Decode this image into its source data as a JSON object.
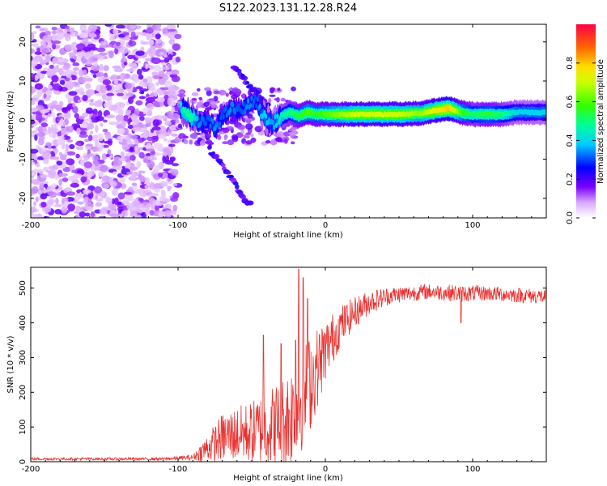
{
  "figure": {
    "title": "S122.2023.131.12.28.R24"
  },
  "chart_data": [
    {
      "type": "heatmap",
      "title": "",
      "xlabel": "Height of straight line (km)",
      "ylabel": "Frequency (Hz)",
      "xlim": [
        -200,
        150
      ],
      "ylim": [
        -25,
        24.5
      ],
      "xticks": [
        -200,
        -100,
        0,
        100
      ],
      "xtick_labels": [
        "-200",
        "-100",
        "0",
        "100"
      ],
      "yticks": [
        -20,
        -10,
        0,
        10,
        20
      ],
      "ytick_labels": [
        "-20",
        "-10",
        "0",
        "10",
        "20"
      ],
      "colorbar": {
        "label": "Normalized spectral amplitude",
        "range": [
          0,
          1
        ],
        "ticks": [
          0,
          0.2,
          0.4,
          0.6,
          0.8
        ],
        "tick_labels": [
          "0.0",
          "0.2",
          "0.4",
          "0.6",
          "0.8"
        ]
      },
      "features": {
        "noise_region_x": [
          -200,
          -100
        ],
        "main_ridge": [
          {
            "x": -98,
            "y": 3,
            "a": 0.45
          },
          {
            "x": -92,
            "y": 1.5,
            "a": 0.5
          },
          {
            "x": -86,
            "y": -1,
            "a": 0.35
          },
          {
            "x": -80,
            "y": 0,
            "a": 0.3
          },
          {
            "x": -75,
            "y": -2,
            "a": 0.35
          },
          {
            "x": -70,
            "y": 1,
            "a": 0.3
          },
          {
            "x": -64,
            "y": 3,
            "a": 0.35
          },
          {
            "x": -58,
            "y": 2.5,
            "a": 0.3
          },
          {
            "x": -52,
            "y": 4,
            "a": 0.35
          },
          {
            "x": -47,
            "y": 5,
            "a": 0.3
          },
          {
            "x": -42,
            "y": 1,
            "a": 0.4
          },
          {
            "x": -36,
            "y": -1,
            "a": 0.35
          },
          {
            "x": -30,
            "y": 1,
            "a": 0.45
          },
          {
            "x": -24,
            "y": 2,
            "a": 0.5
          },
          {
            "x": -18,
            "y": 1,
            "a": 0.55
          },
          {
            "x": -12,
            "y": 2,
            "a": 0.6
          },
          {
            "x": -6,
            "y": 1.5,
            "a": 0.55
          },
          {
            "x": 0,
            "y": 1.5,
            "a": 0.6
          },
          {
            "x": 10,
            "y": 1.5,
            "a": 0.65
          },
          {
            "x": 20,
            "y": 1.5,
            "a": 0.7
          },
          {
            "x": 35,
            "y": 1.5,
            "a": 0.7
          },
          {
            "x": 50,
            "y": 1.5,
            "a": 0.7
          },
          {
            "x": 65,
            "y": 1.7,
            "a": 0.65
          },
          {
            "x": 75,
            "y": 2.5,
            "a": 0.75
          },
          {
            "x": 84,
            "y": 3,
            "a": 0.8
          },
          {
            "x": 92,
            "y": 2,
            "a": 0.6
          },
          {
            "x": 100,
            "y": 1.5,
            "a": 0.5
          },
          {
            "x": 110,
            "y": 1.5,
            "a": 0.55
          },
          {
            "x": 120,
            "y": 1.5,
            "a": 0.5
          },
          {
            "x": 130,
            "y": 2,
            "a": 0.4
          },
          {
            "x": 140,
            "y": 2,
            "a": 0.4
          },
          {
            "x": 150,
            "y": 2,
            "a": 0.4
          }
        ],
        "diagonal_branch": [
          {
            "x": -95,
            "y": 2
          },
          {
            "x": -85,
            "y": -1
          },
          {
            "x": -80,
            "y": -4
          },
          {
            "x": -78,
            "y": -8
          },
          {
            "x": -72,
            "y": -10
          },
          {
            "x": -68,
            "y": -13
          },
          {
            "x": -62,
            "y": -16
          },
          {
            "x": -56,
            "y": -20
          },
          {
            "x": -50,
            "y": -22
          }
        ],
        "upper_branch": [
          {
            "x": -62,
            "y": 14
          },
          {
            "x": -56,
            "y": 11
          },
          {
            "x": -50,
            "y": 8
          },
          {
            "x": -44,
            "y": 6
          },
          {
            "x": -38,
            "y": 3
          }
        ]
      }
    },
    {
      "type": "line",
      "title": "",
      "xlabel": "Height of straight line (km)",
      "ylabel": "SNR (10 * v/v)",
      "xlim": [
        -200,
        150
      ],
      "ylim": [
        0,
        560
      ],
      "xticks": [
        -200,
        -100,
        0,
        100
      ],
      "xtick_labels": [
        "-200",
        "-100",
        "0",
        "100"
      ],
      "yticks": [
        0,
        100,
        200,
        300,
        400,
        500
      ],
      "ytick_labels": [
        "0",
        "100",
        "200",
        "300",
        "400",
        "500"
      ],
      "color": "#e8312f",
      "series_envelope": [
        {
          "x": -200,
          "mean": 8,
          "noise": 4
        },
        {
          "x": -110,
          "mean": 8,
          "noise": 4
        },
        {
          "x": -90,
          "mean": 12,
          "noise": 8
        },
        {
          "x": -80,
          "mean": 40,
          "noise": 40
        },
        {
          "x": -70,
          "mean": 70,
          "noise": 70
        },
        {
          "x": -60,
          "mean": 80,
          "noise": 80
        },
        {
          "x": -50,
          "mean": 85,
          "noise": 90
        },
        {
          "x": -40,
          "mean": 100,
          "noise": 110
        },
        {
          "x": -30,
          "mean": 110,
          "noise": 130
        },
        {
          "x": -20,
          "mean": 150,
          "noise": 160
        },
        {
          "x": -10,
          "mean": 230,
          "noise": 140
        },
        {
          "x": 0,
          "mean": 320,
          "noise": 90
        },
        {
          "x": 10,
          "mean": 390,
          "noise": 60
        },
        {
          "x": 20,
          "mean": 430,
          "noise": 45
        },
        {
          "x": 30,
          "mean": 460,
          "noise": 35
        },
        {
          "x": 45,
          "mean": 480,
          "noise": 25
        },
        {
          "x": 70,
          "mean": 490,
          "noise": 22
        },
        {
          "x": 90,
          "mean": 485,
          "noise": 25
        },
        {
          "x": 110,
          "mean": 485,
          "noise": 22
        },
        {
          "x": 130,
          "mean": 480,
          "noise": 22
        },
        {
          "x": 150,
          "mean": 475,
          "noise": 22
        }
      ],
      "spikes": [
        {
          "x": -42,
          "y": 365
        },
        {
          "x": -30,
          "y": 340
        },
        {
          "x": -20,
          "y": 350
        },
        {
          "x": -18,
          "y": 555
        },
        {
          "x": -15,
          "y": 530
        },
        {
          "x": -12,
          "y": 470
        },
        {
          "x": 92,
          "y": 400
        }
      ]
    }
  ]
}
